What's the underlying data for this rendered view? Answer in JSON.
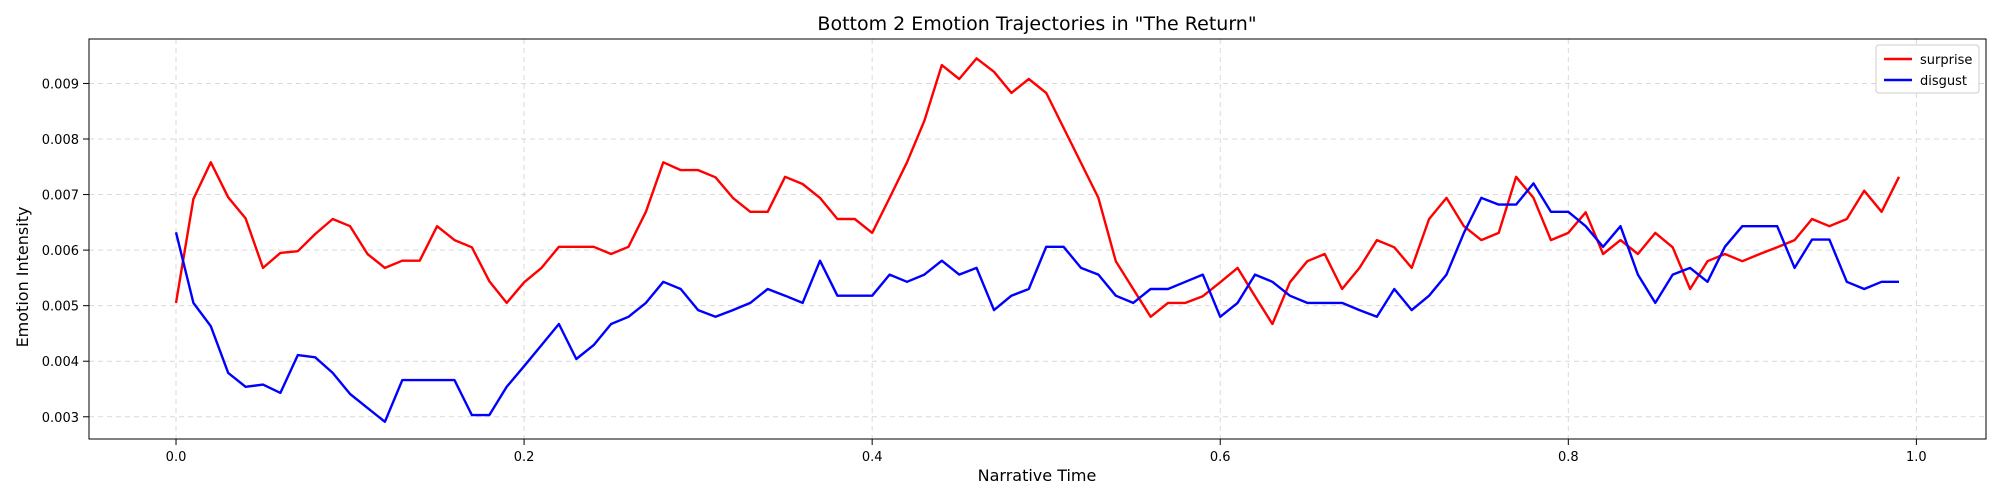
{
  "chart_data": {
    "type": "line",
    "title": "Bottom 2 Emotion Trajectories in \"The Return\"",
    "xlabel": "Narrative Time",
    "ylabel": "Emotion Intensity",
    "xlim": [
      -0.05,
      1.04
    ],
    "ylim": [
      0.0026,
      0.0098
    ],
    "xticks": [
      0.0,
      0.2,
      0.4,
      0.6,
      0.8,
      1.0
    ],
    "xtick_labels": [
      "0.0",
      "0.2",
      "0.4",
      "0.6",
      "0.8",
      "1.0"
    ],
    "yticks": [
      0.003,
      0.004,
      0.005,
      0.006,
      0.007,
      0.008,
      0.009
    ],
    "ytick_labels": [
      "0.003",
      "0.004",
      "0.005",
      "0.006",
      "0.007",
      "0.008",
      "0.009"
    ],
    "grid": true,
    "legend_position": "top-right",
    "x": [
      0.0,
      0.01,
      0.02,
      0.03,
      0.04,
      0.05,
      0.06,
      0.07,
      0.08,
      0.09,
      0.1,
      0.11,
      0.12,
      0.13,
      0.14,
      0.15,
      0.16,
      0.17,
      0.18,
      0.19,
      0.2,
      0.21,
      0.22,
      0.23,
      0.24,
      0.25,
      0.26,
      0.27,
      0.28,
      0.29,
      0.3,
      0.31,
      0.32,
      0.33,
      0.34,
      0.35,
      0.36,
      0.37,
      0.38,
      0.39,
      0.4,
      0.41,
      0.42,
      0.43,
      0.44,
      0.45,
      0.46,
      0.47,
      0.48,
      0.49,
      0.5,
      0.51,
      0.52,
      0.53,
      0.54,
      0.55,
      0.56,
      0.57,
      0.58,
      0.59,
      0.6,
      0.61,
      0.62,
      0.63,
      0.64,
      0.65,
      0.66,
      0.67,
      0.68,
      0.69,
      0.7,
      0.71,
      0.72,
      0.73,
      0.74,
      0.75,
      0.76,
      0.77,
      0.78,
      0.79,
      0.8,
      0.81,
      0.82,
      0.83,
      0.84,
      0.85,
      0.86,
      0.87,
      0.88,
      0.89,
      0.9,
      0.91,
      0.92,
      0.93,
      0.94,
      0.95,
      0.96,
      0.97,
      0.98,
      0.99
    ],
    "series": [
      {
        "name": "surprise",
        "color": "#ff0000",
        "values": [
          0.00505,
          0.00692,
          0.00758,
          0.00695,
          0.00657,
          0.00568,
          0.00595,
          0.00598,
          0.00629,
          0.00656,
          0.00643,
          0.00593,
          0.00568,
          0.00581,
          0.00581,
          0.00643,
          0.00618,
          0.00605,
          0.00544,
          0.00505,
          0.00542,
          0.00568,
          0.00606,
          0.00606,
          0.00606,
          0.00593,
          0.00606,
          0.00669,
          0.00758,
          0.00744,
          0.00744,
          0.00731,
          0.00694,
          0.00669,
          0.00669,
          0.00732,
          0.00719,
          0.00694,
          0.00656,
          0.00656,
          0.00631,
          0.00694,
          0.00758,
          0.00833,
          0.00933,
          0.00908,
          0.00945,
          0.00921,
          0.00883,
          0.00908,
          0.00883,
          0.0082,
          0.00757,
          0.00694,
          0.0058,
          0.0053,
          0.0048,
          0.00505,
          0.00505,
          0.00517,
          0.00542,
          0.00568,
          0.00517,
          0.00467,
          0.00542,
          0.0058,
          0.00593,
          0.0053,
          0.00568,
          0.00618,
          0.00605,
          0.00568,
          0.00656,
          0.00694,
          0.00643,
          0.00618,
          0.00631,
          0.00732,
          0.00694,
          0.00618,
          0.00631,
          0.00668,
          0.00593,
          0.00618,
          0.00593,
          0.00631,
          0.00605,
          0.0053,
          0.0058,
          0.00593,
          0.0058,
          0.00593,
          0.00605,
          0.00618,
          0.00656,
          0.00643,
          0.00656,
          0.00707,
          0.00669,
          0.00732
        ]
      },
      {
        "name": "disgust",
        "color": "#0000ff",
        "values": [
          0.00632,
          0.00505,
          0.00463,
          0.00379,
          0.00354,
          0.00358,
          0.00343,
          0.00411,
          0.00407,
          0.00379,
          0.00341,
          0.00316,
          0.00291,
          0.00366,
          0.00366,
          0.00366,
          0.00366,
          0.00303,
          0.00303,
          0.00354,
          0.00391,
          0.00429,
          0.00467,
          0.00404,
          0.00429,
          0.00467,
          0.0048,
          0.00505,
          0.00543,
          0.0053,
          0.00492,
          0.0048,
          0.00492,
          0.00505,
          0.0053,
          0.00518,
          0.00505,
          0.00581,
          0.00518,
          0.00518,
          0.00518,
          0.00556,
          0.00543,
          0.00556,
          0.00581,
          0.00556,
          0.00568,
          0.00492,
          0.00518,
          0.0053,
          0.00606,
          0.00606,
          0.00568,
          0.00556,
          0.00518,
          0.00505,
          0.0053,
          0.0053,
          0.00543,
          0.00556,
          0.0048,
          0.00505,
          0.00556,
          0.00543,
          0.00518,
          0.00505,
          0.00505,
          0.00505,
          0.00492,
          0.0048,
          0.0053,
          0.00492,
          0.00518,
          0.00556,
          0.00631,
          0.00694,
          0.00682,
          0.00682,
          0.0072,
          0.00669,
          0.00669,
          0.00643,
          0.00606,
          0.00643,
          0.00556,
          0.00505,
          0.00556,
          0.00568,
          0.00543,
          0.00606,
          0.00643,
          0.00643,
          0.00643,
          0.00568,
          0.00619,
          0.00619,
          0.00543,
          0.0053,
          0.00543,
          0.00543
        ]
      }
    ]
  }
}
